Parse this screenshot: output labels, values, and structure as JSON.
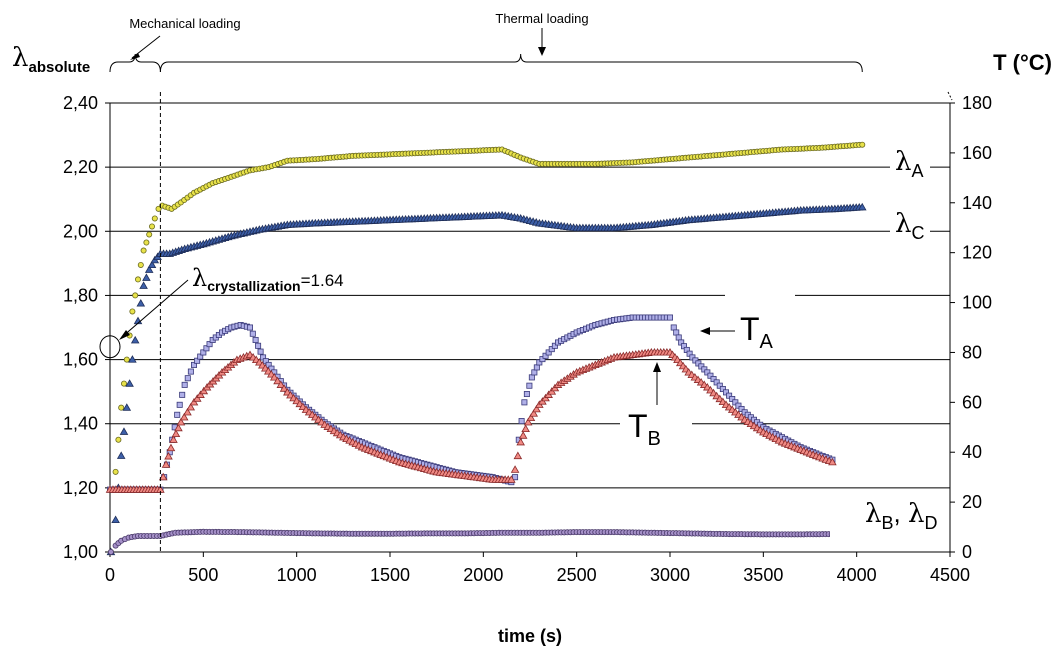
{
  "chart_data": {
    "type": "scatter",
    "xlabel": "time (s)",
    "ylabel_left": {
      "symbol": "λ",
      "sub": "absolute"
    },
    "ylabel_right": "T (°C)",
    "xlim": [
      0,
      4500
    ],
    "ylim_left": [
      1.0,
      2.4
    ],
    "ylim_right": [
      0,
      180
    ],
    "x_ticks": [
      "0",
      "500",
      "1000",
      "1500",
      "2000",
      "2500",
      "3000",
      "3500",
      "4000",
      "4500"
    ],
    "y_left_ticks": [
      "1,00",
      "1,20",
      "1,40",
      "1,60",
      "1,80",
      "2,00",
      "2,20",
      "2,40"
    ],
    "y_right_ticks": [
      "0",
      "20",
      "40",
      "60",
      "80",
      "100",
      "120",
      "140",
      "160",
      "180"
    ],
    "grid": "horizontal",
    "annotations": {
      "mechanical": "Mechanical loading",
      "thermal": "Thermal loading",
      "crystallization_symbol": "λ",
      "crystallization_sub": "crystallization",
      "crystallization_value": "=1.64",
      "mechanical_end_x": 270,
      "crystallization_point": [
        0,
        1.64
      ]
    },
    "series": [
      {
        "name": "λA",
        "label_symbol": "λ",
        "label_sub": "A",
        "axis": "left",
        "marker": "circle",
        "color": "#e8e24a",
        "edge": "#6a6a20",
        "points": [
          [
            5,
            1.0
          ],
          [
            30,
            1.25
          ],
          [
            60,
            1.45
          ],
          [
            90,
            1.6
          ],
          [
            120,
            1.75
          ],
          [
            150,
            1.85
          ],
          [
            180,
            1.94
          ],
          [
            210,
            1.99
          ],
          [
            240,
            2.04
          ],
          [
            260,
            2.07
          ],
          [
            280,
            2.08
          ],
          [
            330,
            2.07
          ],
          [
            380,
            2.09
          ],
          [
            450,
            2.12
          ],
          [
            550,
            2.15
          ],
          [
            650,
            2.17
          ],
          [
            750,
            2.19
          ],
          [
            850,
            2.2
          ],
          [
            950,
            2.22
          ],
          [
            1100,
            2.225
          ],
          [
            1300,
            2.235
          ],
          [
            1500,
            2.24
          ],
          [
            1700,
            2.245
          ],
          [
            1900,
            2.25
          ],
          [
            2100,
            2.255
          ],
          [
            2200,
            2.23
          ],
          [
            2300,
            2.21
          ],
          [
            2450,
            2.21
          ],
          [
            2600,
            2.21
          ],
          [
            2800,
            2.215
          ],
          [
            3000,
            2.225
          ],
          [
            3200,
            2.235
          ],
          [
            3400,
            2.245
          ],
          [
            3600,
            2.255
          ],
          [
            3800,
            2.26
          ],
          [
            4030,
            2.27
          ]
        ]
      },
      {
        "name": "λC",
        "label_symbol": "λ",
        "label_sub": "C",
        "axis": "left",
        "marker": "triangle",
        "color": "#3d5fa8",
        "edge": "#1f2f5a",
        "points": [
          [
            5,
            1.0
          ],
          [
            30,
            1.1
          ],
          [
            60,
            1.3
          ],
          [
            90,
            1.45
          ],
          [
            120,
            1.6
          ],
          [
            150,
            1.72
          ],
          [
            180,
            1.83
          ],
          [
            210,
            1.88
          ],
          [
            240,
            1.91
          ],
          [
            270,
            1.93
          ],
          [
            320,
            1.93
          ],
          [
            400,
            1.945
          ],
          [
            500,
            1.96
          ],
          [
            650,
            1.985
          ],
          [
            800,
            2.005
          ],
          [
            950,
            2.02
          ],
          [
            1100,
            2.025
          ],
          [
            1300,
            2.03
          ],
          [
            1500,
            2.035
          ],
          [
            1700,
            2.04
          ],
          [
            1900,
            2.045
          ],
          [
            2100,
            2.05
          ],
          [
            2200,
            2.04
          ],
          [
            2300,
            2.025
          ],
          [
            2500,
            2.01
          ],
          [
            2700,
            2.01
          ],
          [
            2900,
            2.02
          ],
          [
            3100,
            2.035
          ],
          [
            3300,
            2.045
          ],
          [
            3500,
            2.055
          ],
          [
            3700,
            2.065
          ],
          [
            3900,
            2.07
          ],
          [
            4030,
            2.075
          ]
        ]
      },
      {
        "name": "λB, λD",
        "label_symbol": "λ",
        "label_sub": "B",
        "label_symbol2": "λ",
        "label_sub2": "D",
        "axis": "left",
        "marker": "circle",
        "color": "#a590c8",
        "edge": "#4a3a6a",
        "points": [
          [
            5,
            1.0
          ],
          [
            30,
            1.02
          ],
          [
            60,
            1.035
          ],
          [
            100,
            1.045
          ],
          [
            150,
            1.05
          ],
          [
            200,
            1.05
          ],
          [
            270,
            1.05
          ],
          [
            350,
            1.06
          ],
          [
            500,
            1.063
          ],
          [
            700,
            1.062
          ],
          [
            900,
            1.06
          ],
          [
            1100,
            1.058
          ],
          [
            1300,
            1.057
          ],
          [
            1500,
            1.057
          ],
          [
            1700,
            1.058
          ],
          [
            1900,
            1.058
          ],
          [
            2100,
            1.06
          ],
          [
            2300,
            1.06
          ],
          [
            2500,
            1.062
          ],
          [
            2700,
            1.062
          ],
          [
            2900,
            1.06
          ],
          [
            3100,
            1.058
          ],
          [
            3300,
            1.056
          ],
          [
            3500,
            1.055
          ],
          [
            3700,
            1.055
          ],
          [
            3900,
            1.056
          ],
          [
            4030,
            1.057
          ]
        ]
      },
      {
        "name": "TA",
        "label_symbol": "T",
        "label_sub": "A",
        "axis": "right",
        "marker": "square",
        "color": "#b0b0e8",
        "edge": "#3a3a7a",
        "points": [
          [
            0,
            25
          ],
          [
            270,
            25
          ],
          [
            290,
            30
          ],
          [
            320,
            40
          ],
          [
            360,
            55
          ],
          [
            400,
            67
          ],
          [
            450,
            75
          ],
          [
            500,
            80
          ],
          [
            550,
            85
          ],
          [
            600,
            88
          ],
          [
            650,
            90
          ],
          [
            700,
            91
          ],
          [
            750,
            90
          ],
          [
            780,
            85
          ],
          [
            820,
            78
          ],
          [
            880,
            72
          ],
          [
            950,
            65
          ],
          [
            1050,
            58
          ],
          [
            1150,
            52
          ],
          [
            1250,
            47
          ],
          [
            1350,
            44
          ],
          [
            1450,
            41
          ],
          [
            1550,
            38
          ],
          [
            1650,
            36
          ],
          [
            1750,
            34
          ],
          [
            1850,
            32
          ],
          [
            1950,
            31
          ],
          [
            2050,
            30
          ],
          [
            2150,
            28
          ],
          [
            2170,
            30
          ],
          [
            2190,
            45
          ],
          [
            2220,
            60
          ],
          [
            2260,
            70
          ],
          [
            2300,
            76
          ],
          [
            2400,
            84
          ],
          [
            2500,
            88
          ],
          [
            2600,
            91
          ],
          [
            2700,
            93
          ],
          [
            2800,
            94
          ],
          [
            2900,
            94
          ],
          [
            3000,
            94
          ],
          [
            3020,
            90
          ],
          [
            3060,
            84
          ],
          [
            3120,
            78
          ],
          [
            3200,
            72
          ],
          [
            3300,
            64
          ],
          [
            3400,
            56
          ],
          [
            3500,
            50
          ],
          [
            3600,
            46
          ],
          [
            3700,
            42
          ],
          [
            3800,
            39
          ],
          [
            3870,
            37
          ]
        ]
      },
      {
        "name": "TB",
        "label_symbol": "T",
        "label_sub": "B",
        "axis": "right",
        "marker": "triangle",
        "color": "#f08a84",
        "edge": "#8a2a2a",
        "points": [
          [
            0,
            25
          ],
          [
            270,
            25
          ],
          [
            300,
            35
          ],
          [
            340,
            45
          ],
          [
            380,
            52
          ],
          [
            450,
            60
          ],
          [
            520,
            66
          ],
          [
            600,
            72
          ],
          [
            680,
            77
          ],
          [
            750,
            79
          ],
          [
            800,
            76
          ],
          [
            880,
            70
          ],
          [
            950,
            64
          ],
          [
            1050,
            57
          ],
          [
            1150,
            51
          ],
          [
            1250,
            46
          ],
          [
            1350,
            42
          ],
          [
            1450,
            39
          ],
          [
            1550,
            36
          ],
          [
            1650,
            34
          ],
          [
            1750,
            32
          ],
          [
            1850,
            31
          ],
          [
            1950,
            30
          ],
          [
            2050,
            29
          ],
          [
            2150,
            29
          ],
          [
            2170,
            33
          ],
          [
            2200,
            44
          ],
          [
            2240,
            52
          ],
          [
            2300,
            59
          ],
          [
            2400,
            67
          ],
          [
            2500,
            72
          ],
          [
            2600,
            75
          ],
          [
            2700,
            78
          ],
          [
            2800,
            79
          ],
          [
            2900,
            80
          ],
          [
            3000,
            80
          ],
          [
            3040,
            77
          ],
          [
            3100,
            72
          ],
          [
            3200,
            66
          ],
          [
            3300,
            59
          ],
          [
            3400,
            53
          ],
          [
            3500,
            48
          ],
          [
            3600,
            44
          ],
          [
            3700,
            41
          ],
          [
            3800,
            38
          ],
          [
            3870,
            36
          ]
        ]
      }
    ]
  }
}
